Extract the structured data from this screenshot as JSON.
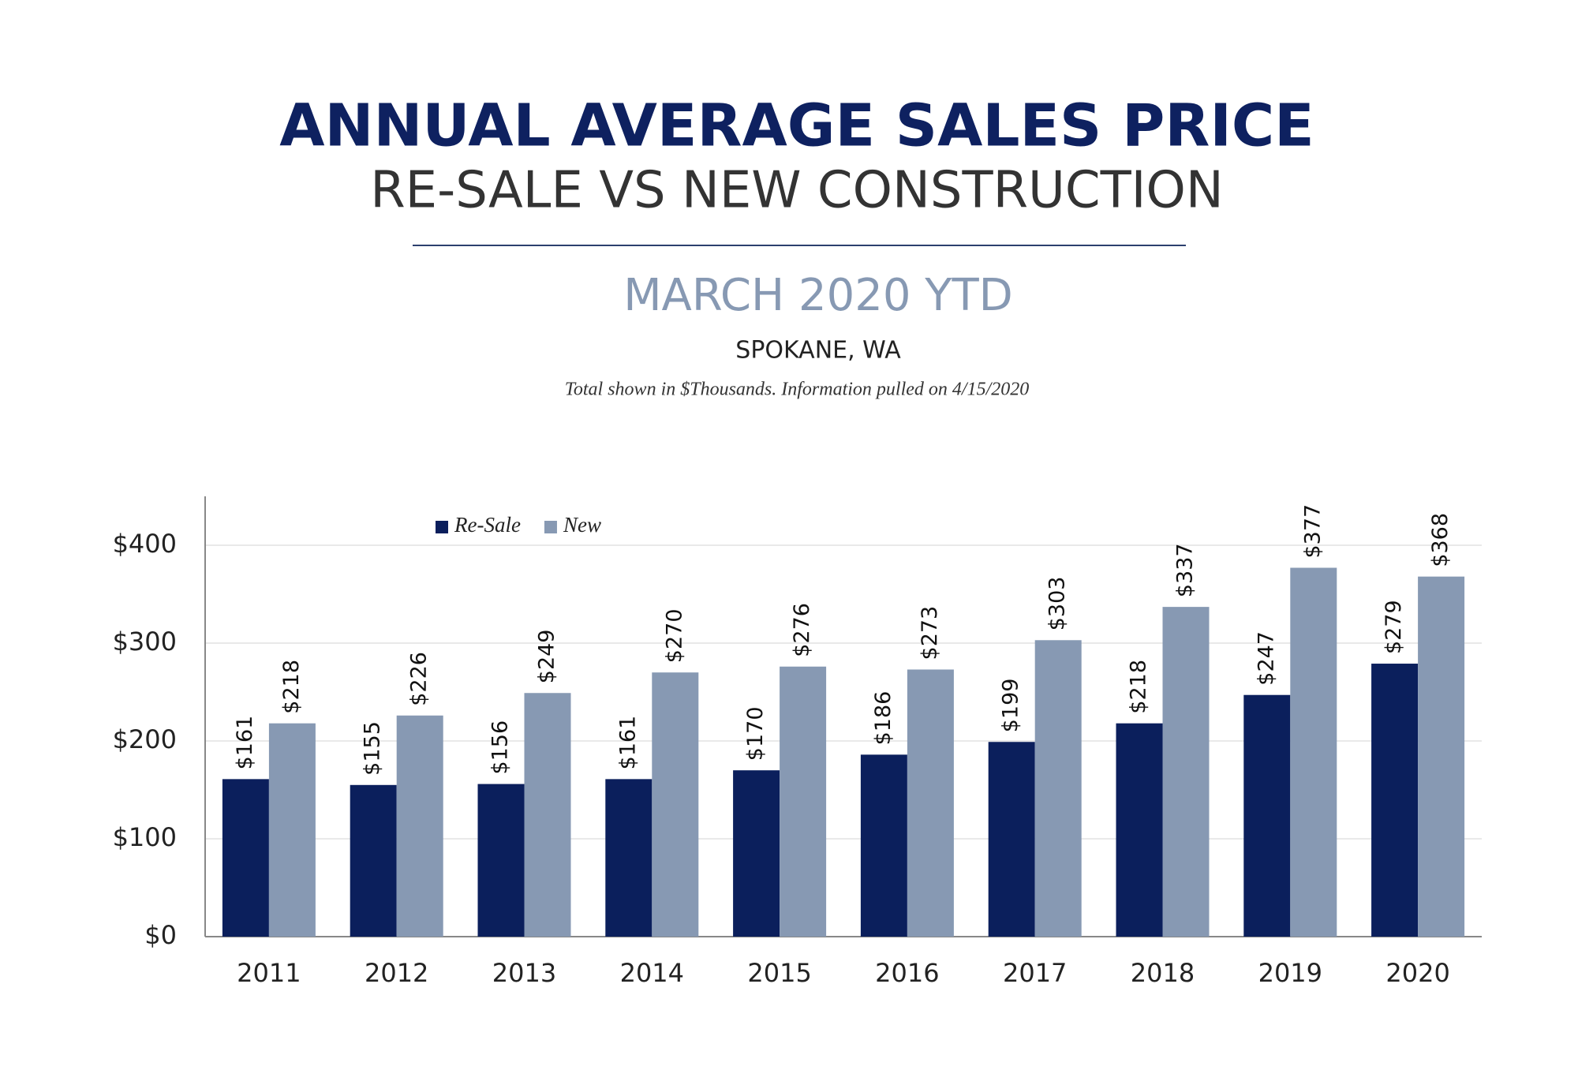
{
  "chart_data": {
    "type": "bar",
    "title": "ANNUAL AVERAGE SALES PRICE",
    "subtitle": "RE-SALE VS NEW CONSTRUCTION",
    "period": "MARCH 2020 YTD",
    "location": "SPOKANE, WA",
    "note": "Total shown in $Thousands. Information pulled on 4/15/2020",
    "categories": [
      "2011",
      "2012",
      "2013",
      "2014",
      "2015",
      "2016",
      "2017",
      "2018",
      "2019",
      "2020"
    ],
    "series": [
      {
        "name": "Re-Sale",
        "color": "#0b1f5c",
        "values": [
          161,
          155,
          156,
          161,
          170,
          186,
          199,
          218,
          247,
          279
        ],
        "value_labels": [
          "$161",
          "$155",
          "$156",
          "$161",
          "$170",
          "$186",
          "$199",
          "$218",
          "$247",
          "$279"
        ]
      },
      {
        "name": "New",
        "color": "#8799b3",
        "values": [
          218,
          226,
          249,
          270,
          276,
          273,
          303,
          337,
          377,
          368
        ],
        "value_labels": [
          "$218",
          "$226",
          "$249",
          "$270",
          "$276",
          "$273",
          "$303",
          "$337",
          "$377",
          "$368"
        ]
      }
    ],
    "ylim": [
      0,
      450
    ],
    "yticks": [
      {
        "value": 0,
        "label": "$0"
      },
      {
        "value": 100,
        "label": "$100"
      },
      {
        "value": 200,
        "label": "$200"
      },
      {
        "value": 300,
        "label": "$300"
      },
      {
        "value": 400,
        "label": "$400"
      }
    ],
    "grid": true,
    "legend": "top-left"
  }
}
